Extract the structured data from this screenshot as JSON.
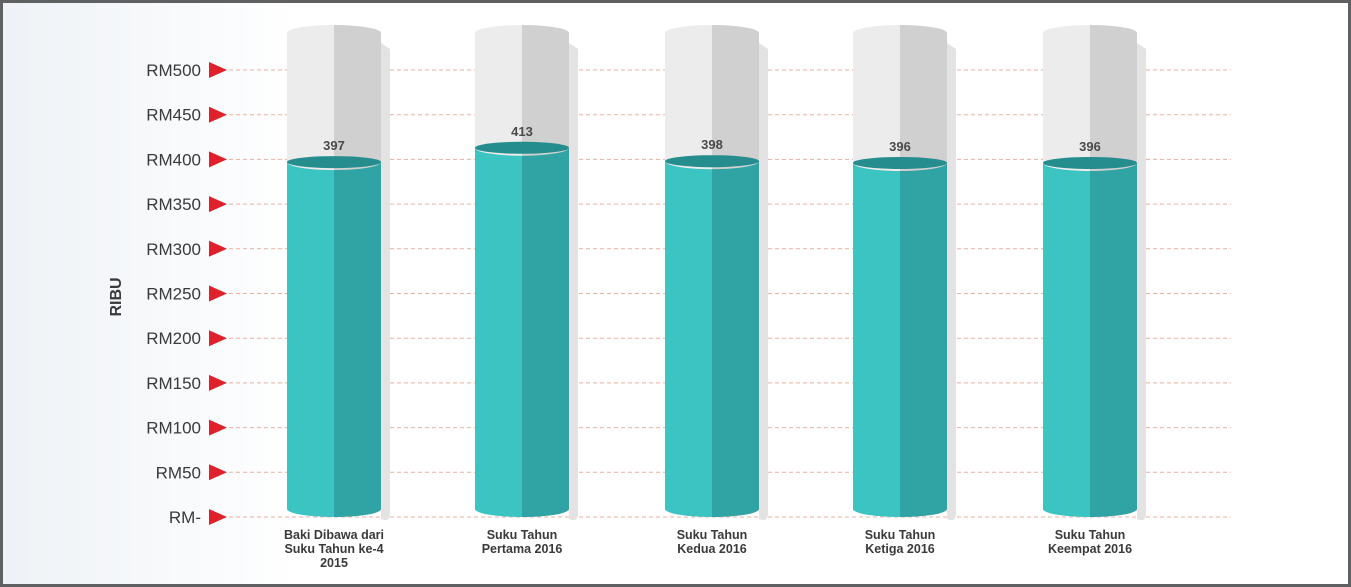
{
  "chart_data": {
    "type": "bar",
    "ylabel": "RIBU",
    "categories": [
      [
        "Baki Dibawa dari",
        "Suku Tahun ke-4",
        "2015"
      ],
      [
        "Suku Tahun",
        "Pertama 2016"
      ],
      [
        "Suku Tahun",
        "Kedua 2016"
      ],
      [
        "Suku Tahun",
        "Ketiga 2016"
      ],
      [
        "Suku Tahun",
        "Keempat 2016"
      ]
    ],
    "values": [
      397,
      413,
      398,
      396,
      396
    ],
    "value_labels": [
      "397",
      "413",
      "398",
      "396",
      "396"
    ],
    "ylim": [
      0,
      500
    ],
    "yticks": [
      {
        "value": 0,
        "label": "RM-"
      },
      {
        "value": 50,
        "label": "RM50"
      },
      {
        "value": 100,
        "label": "RM100"
      },
      {
        "value": 150,
        "label": "RM150"
      },
      {
        "value": 200,
        "label": "RM200"
      },
      {
        "value": 250,
        "label": "RM250"
      },
      {
        "value": 300,
        "label": "RM300"
      },
      {
        "value": 350,
        "label": "RM350"
      },
      {
        "value": 400,
        "label": "RM400"
      },
      {
        "value": 450,
        "label": "RM450"
      },
      {
        "value": 500,
        "label": "RM500"
      }
    ],
    "grid": true,
    "colors": {
      "fill_light": "#3cc4c3",
      "fill_dark": "#30a4a4",
      "fill_top": "#268d8e",
      "tube_light": "#ececec",
      "tube_dark": "#d0d0d0",
      "marker": "#e0202a",
      "grid": "#e8b0a0"
    }
  }
}
